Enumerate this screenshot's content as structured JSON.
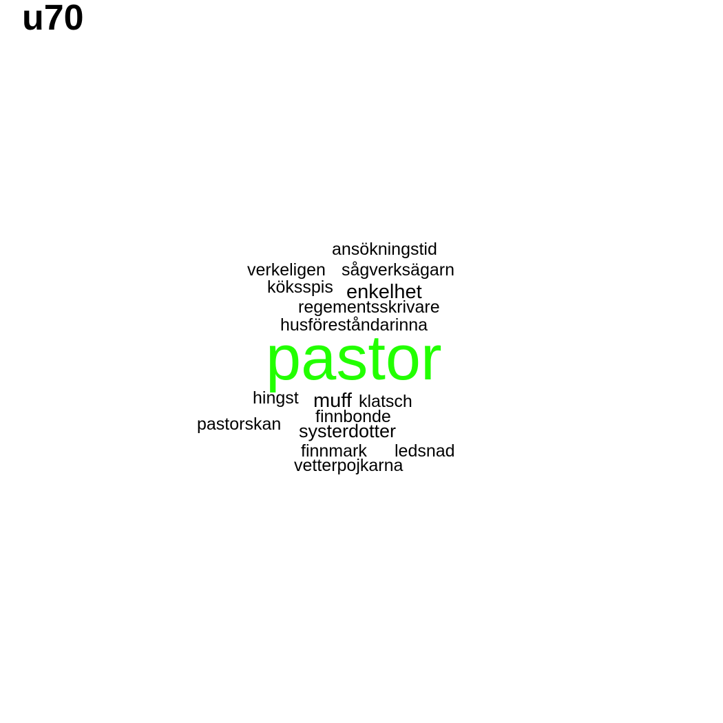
{
  "title": "u70",
  "highlight_color": "#22ff00",
  "text_color": "#000000",
  "words": {
    "ansokningstid": "ansökningstid",
    "verkeligen": "verkeligen",
    "sagverksagarn": "sågverksägarn",
    "koksspis": "köksspis",
    "enkelhet": "enkelhet",
    "regementsskrivare": "regementsskrivare",
    "husforestandarinna": "husföreståndarinna",
    "pastor": "pastor",
    "hingst": "hingst",
    "muff": "muff",
    "klatsch": "klatsch",
    "finnbonde": "finnbonde",
    "pastorskan": "pastorskan",
    "systerdotter": "systerdotter",
    "finnmark": "finnmark",
    "ledsnad": "ledsnad",
    "vetterpojkarna": "vetterpojkarna"
  }
}
